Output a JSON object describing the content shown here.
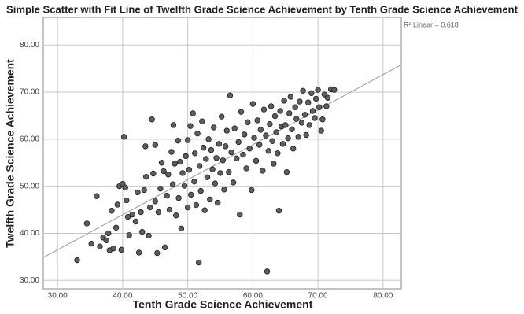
{
  "chart_data": {
    "type": "scatter",
    "title": "Simple Scatter with Fit Line of Twelfth Grade Science Achievement by Tenth Grade Science Achievement",
    "annotation": "R² Linear = 0.618",
    "x_label": "Tenth Grade Science Achievement",
    "y_label": "Twelfth Grade Science Achievement",
    "color": "#5e5e5e",
    "grid": true,
    "xlim": [
      27.8,
      82.8
    ],
    "ylim": [
      28.2,
      85.9
    ],
    "xticks": [
      {
        "value": 30,
        "label": "30.00"
      },
      {
        "value": 40,
        "label": "40.00"
      },
      {
        "value": 50,
        "label": "50.00"
      },
      {
        "value": 60,
        "label": "60.00"
      },
      {
        "value": 70,
        "label": "70.00"
      },
      {
        "value": 80,
        "label": "80.00"
      }
    ],
    "yticks": [
      {
        "value": 30,
        "label": "30.00"
      },
      {
        "value": 40,
        "label": "40.00"
      },
      {
        "value": 50,
        "label": "50.00"
      },
      {
        "value": 60,
        "label": "60.00"
      },
      {
        "value": 70,
        "label": "70.00"
      },
      {
        "value": 80,
        "label": "80.00"
      }
    ],
    "fit_line": {
      "x": [
        27.8,
        82.8
      ],
      "y": [
        34.85,
        75.8
      ],
      "color": "#999999"
    },
    "x": [
      33.0,
      34.5,
      35.2,
      36.0,
      36.5,
      37.0,
      37.5,
      37.8,
      38.0,
      38.3,
      38.6,
      39.0,
      39.2,
      39.5,
      39.8,
      40.0,
      40.2,
      40.4,
      40.6,
      41.0,
      41.5,
      42.0,
      42.3,
      42.5,
      42.8,
      43.0,
      43.3,
      43.6,
      44.0,
      44.2,
      44.5,
      44.7,
      45.0,
      45.0,
      45.3,
      45.5,
      45.8,
      46.0,
      46.3,
      46.5,
      46.8,
      47.0,
      47.2,
      47.5,
      47.7,
      48.0,
      48.2,
      48.5,
      48.6,
      48.8,
      49.0,
      49.2,
      49.5,
      49.7,
      50.0,
      50.0,
      50.2,
      50.4,
      50.5,
      50.8,
      51.0,
      51.1,
      51.3,
      51.5,
      51.7,
      51.8,
      52.0,
      52.2,
      52.4,
      52.6,
      52.8,
      53.0,
      53.2,
      53.4,
      53.6,
      53.8,
      54.0,
      54.2,
      54.4,
      54.6,
      54.8,
      55.0,
      55.2,
      55.4,
      55.6,
      55.8,
      56.0,
      56.3,
      56.5,
      56.7,
      57.0,
      57.2,
      57.5,
      57.8,
      58.0,
      58.2,
      58.5,
      58.7,
      59.0,
      59.2,
      59.5,
      59.8,
      60.0,
      60.2,
      60.5,
      60.7,
      61.0,
      61.2,
      61.5,
      61.7,
      62.0,
      62.2,
      62.4,
      62.6,
      62.8,
      63.0,
      63.2,
      63.4,
      63.6,
      63.8,
      64.0,
      64.2,
      64.4,
      64.6,
      64.8,
      65.0,
      65.2,
      65.4,
      65.6,
      65.8,
      66.0,
      66.2,
      66.5,
      66.7,
      67.0,
      67.2,
      67.5,
      67.7,
      68.0,
      68.2,
      68.5,
      68.7,
      69.0,
      69.2,
      69.5,
      69.7,
      70.0,
      70.2,
      70.5,
      70.7,
      71.0,
      71.3,
      71.5,
      72.0,
      72.5,
      43.5,
      47.8,
      40.8
    ],
    "values": [
      34.3,
      42.1,
      37.8,
      47.9,
      37.2,
      39.1,
      38.5,
      40.0,
      36.4,
      44.8,
      36.8,
      41.2,
      46.1,
      50.0,
      36.5,
      50.5,
      60.5,
      49.7,
      47.0,
      39.6,
      44.0,
      42.5,
      48.7,
      35.9,
      44.5,
      40.3,
      49.2,
      52.0,
      39.5,
      45.5,
      64.2,
      52.7,
      58.8,
      46.8,
      35.8,
      44.5,
      49.5,
      55.0,
      53.2,
      37.0,
      48.0,
      52.5,
      45.0,
      57.3,
      50.4,
      54.8,
      43.8,
      59.7,
      47.5,
      55.2,
      41.0,
      52.8,
      50.1,
      56.4,
      45.5,
      59.8,
      53.5,
      62.8,
      48.2,
      65.5,
      51.0,
      57.0,
      46.0,
      61.2,
      33.8,
      54.3,
      49.0,
      63.8,
      58.2,
      44.9,
      55.8,
      51.9,
      60.0,
      47.2,
      57.7,
      53.6,
      62.5,
      50.6,
      56.0,
      46.5,
      59.0,
      52.8,
      64.8,
      55.5,
      49.3,
      58.5,
      61.8,
      53.0,
      69.3,
      57.2,
      50.8,
      62.3,
      55.9,
      59.4,
      44.0,
      65.8,
      56.7,
      61.0,
      53.8,
      63.6,
      58.0,
      49.2,
      67.5,
      60.3,
      55.4,
      64.0,
      58.8,
      62.0,
      53.3,
      66.3,
      60.8,
      31.9,
      57.5,
      63.2,
      67.0,
      59.6,
      54.8,
      64.9,
      61.5,
      57.0,
      44.8,
      66.0,
      62.7,
      59.0,
      68.2,
      63.0,
      53.0,
      60.2,
      65.5,
      69.0,
      62.1,
      58.0,
      66.8,
      64.3,
      60.5,
      68.0,
      63.5,
      70.3,
      65.2,
      60.9,
      67.8,
      63.0,
      69.8,
      66.0,
      64.5,
      68.6,
      70.5,
      66.8,
      61.8,
      64.2,
      69.5,
      67.0,
      68.8,
      70.6,
      70.5,
      58.5,
      63.0,
      43.5
    ]
  }
}
